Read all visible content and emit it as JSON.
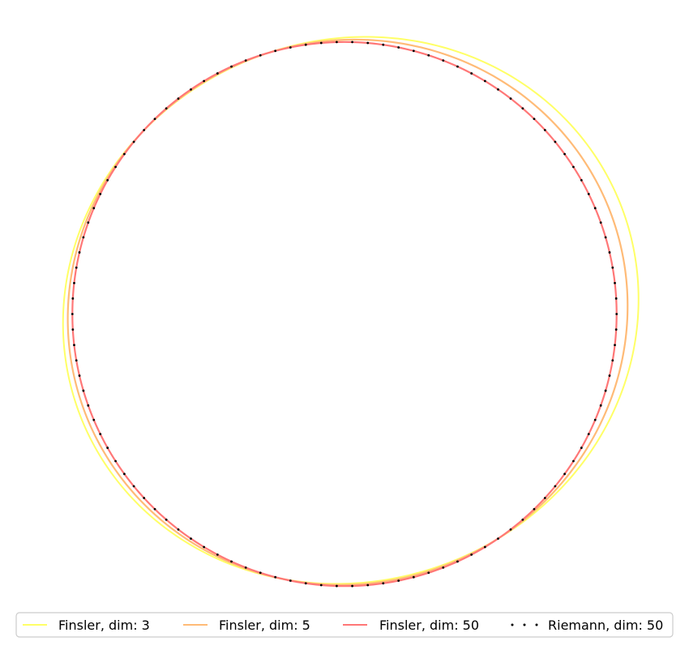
{
  "chart_data": {
    "type": "line",
    "title": "",
    "xlabel": "",
    "ylabel": "",
    "axes_visible": false,
    "grid": false,
    "aspect": "equal",
    "xlim": [
      -1.05,
      1.05
    ],
    "ylim": [
      -1.05,
      1.05
    ],
    "legend_placement": "bottom",
    "legend_columns": 4,
    "curve_model": "closed curve in polar form r(theta) = r0 * (1 + a1*cos(theta - p1) + a2*cos(2*theta - p2)), theta in radians, center (cx, cy)",
    "series": [
      {
        "name": "Finsler, dim: 3",
        "color": "#ffff66",
        "style": "solid",
        "shape": {
          "cx": 0.0,
          "cy": 0.0,
          "r0": 1.03,
          "a1": 0.025,
          "a2": 0.035,
          "p1": 0.5,
          "p2": 0.75
        }
      },
      {
        "name": "Finsler, dim: 5",
        "color": "#ffbb77",
        "style": "solid",
        "shape": {
          "cx": 0.0,
          "cy": 0.0,
          "r0": 1.015,
          "a1": 0.013,
          "a2": 0.018,
          "p1": 0.5,
          "p2": 0.75
        }
      },
      {
        "name": "Finsler, dim: 50",
        "color": "#ff7777",
        "style": "solid",
        "shape": {
          "cx": 0.0,
          "cy": 0.0,
          "r0": 1.0,
          "a1": 0.0,
          "a2": 0.0,
          "p1": 0.0,
          "p2": 0.0
        }
      },
      {
        "name": "Riemann, dim: 50",
        "color": "#000000",
        "style": "dotted",
        "shape": {
          "cx": 0.0,
          "cy": 0.0,
          "r0": 1.0,
          "a1": 0.0,
          "a2": 0.0,
          "p1": 0.0,
          "p2": 0.0
        }
      }
    ]
  }
}
